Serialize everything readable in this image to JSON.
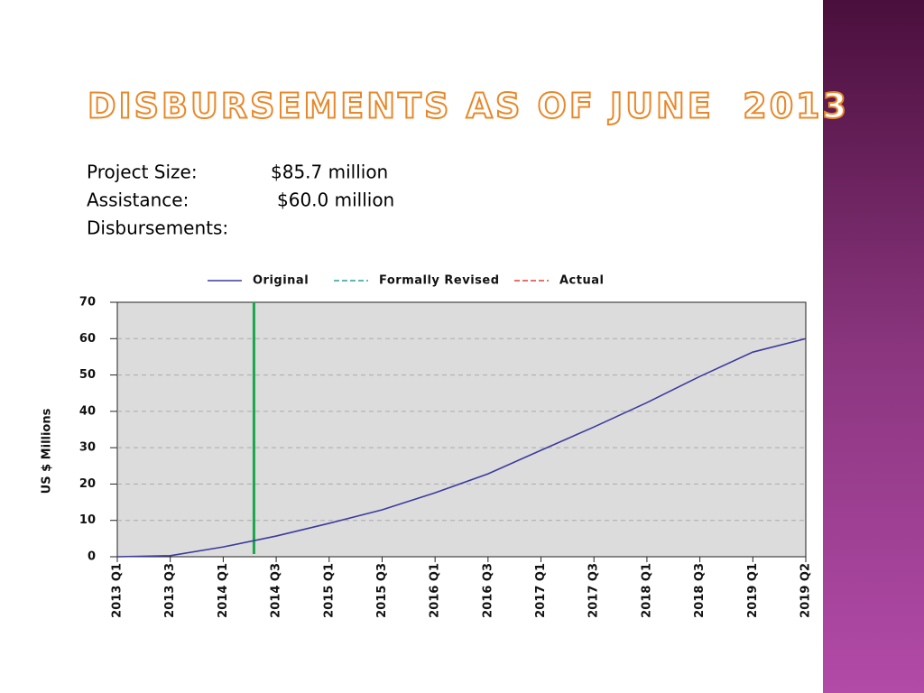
{
  "header": {
    "title": "DISBURSEMENTS AS OF JUNE  2013"
  },
  "info": [
    {
      "label": "Project Size:",
      "value": "$85.7 million"
    },
    {
      "label": "Assistance:",
      "value": "$60.0 million"
    },
    {
      "label": "Disbursements:"
    }
  ],
  "chart_data": {
    "type": "line",
    "y_label": "US $ Millions",
    "categories": [
      "2013 Q1",
      "2013 Q3",
      "2014 Q1",
      "2014 Q3",
      "2015 Q1",
      "2015 Q3",
      "2016 Q1",
      "2016 Q3",
      "2017 Q1",
      "2017 Q3",
      "2018 Q1",
      "2018 Q3",
      "2019 Q1",
      "2019 Q2"
    ],
    "series": [
      {
        "name": "Original",
        "color": "#3b3b9e",
        "values": [
          0,
          0.3,
          2.7,
          5.7,
          9.2,
          12.9,
          17.6,
          22.8,
          29.3,
          35.7,
          42.4,
          49.6,
          56.3,
          60
        ]
      },
      {
        "name": "Formally Revised",
        "color": "#2aa198",
        "dashed": true,
        "values": [
          null,
          null,
          null,
          null,
          null,
          null,
          null,
          null,
          null,
          null,
          null,
          null,
          null,
          null
        ]
      },
      {
        "name": "Actual",
        "color": "#e0403a",
        "dashed": true,
        "values": [
          null,
          null,
          null,
          null,
          null,
          null,
          null,
          null,
          null,
          null,
          null,
          null,
          null,
          null
        ]
      }
    ],
    "ylim": [
      0,
      70
    ],
    "yticks": [
      0,
      10,
      20,
      30,
      40,
      50,
      60,
      70
    ],
    "grid": true,
    "legend": "top",
    "vline": {
      "x": 2.58,
      "color": "#1aa64a"
    }
  }
}
